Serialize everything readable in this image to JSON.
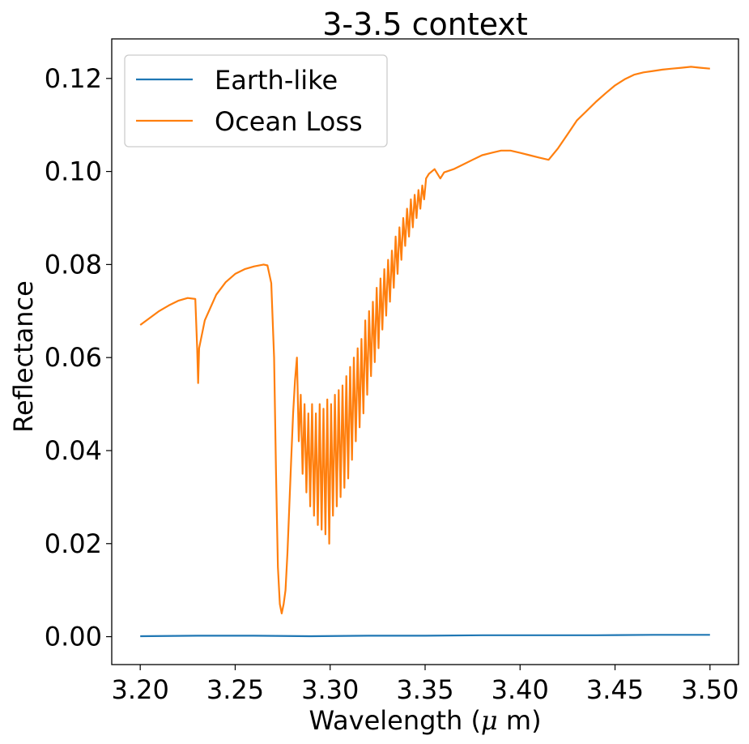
{
  "chart_data": {
    "type": "line",
    "title": "3-3.5 context",
    "xlabel": "Wavelength ($\\mu$ m)",
    "ylabel": "Reflectance",
    "xlim": [
      3.185,
      3.515
    ],
    "ylim": [
      -0.006,
      0.1285
    ],
    "xticks": [
      3.2,
      3.25,
      3.3,
      3.35,
      3.4,
      3.45,
      3.5
    ],
    "xtick_labels": [
      "3.20",
      "3.25",
      "3.30",
      "3.35",
      "3.40",
      "3.45",
      "3.50"
    ],
    "yticks": [
      0.0,
      0.02,
      0.04,
      0.06,
      0.08,
      0.1,
      0.12
    ],
    "ytick_labels": [
      "0.00",
      "0.02",
      "0.04",
      "0.06",
      "0.08",
      "0.10",
      "0.12"
    ],
    "grid": false,
    "legend": {
      "position": "top-left"
    },
    "series": [
      {
        "name": "Earth-like",
        "color": "#1f77b4",
        "x": [
          3.2,
          3.23,
          3.26,
          3.29,
          3.32,
          3.35,
          3.38,
          3.41,
          3.44,
          3.47,
          3.5
        ],
        "y": [
          0.0001,
          0.0002,
          0.0002,
          0.0001,
          0.0002,
          0.0002,
          0.0003,
          0.0003,
          0.0003,
          0.0004,
          0.0004
        ]
      },
      {
        "name": "Ocean Loss",
        "color": "#ff7f0e",
        "x": [
          3.2,
          3.205,
          3.21,
          3.215,
          3.22,
          3.225,
          3.229,
          3.23,
          3.2305,
          3.231,
          3.234,
          3.24,
          3.245,
          3.25,
          3.255,
          3.26,
          3.265,
          3.267,
          3.269,
          3.2705,
          3.2715,
          3.2725,
          3.2735,
          3.2745,
          3.2755,
          3.2765,
          3.2775,
          3.2785,
          3.2795,
          3.2805,
          3.2815,
          3.2825,
          3.2835,
          3.2845,
          3.2855,
          3.2865,
          3.2875,
          3.2885,
          3.2895,
          3.2905,
          3.2915,
          3.2925,
          3.2935,
          3.2945,
          3.2955,
          3.2965,
          3.2975,
          3.2985,
          3.2995,
          3.3005,
          3.3015,
          3.3025,
          3.3035,
          3.3045,
          3.3055,
          3.3065,
          3.3075,
          3.3085,
          3.3095,
          3.3105,
          3.3115,
          3.3125,
          3.3135,
          3.3145,
          3.3155,
          3.3165,
          3.3175,
          3.3185,
          3.3195,
          3.3205,
          3.3215,
          3.3225,
          3.3235,
          3.3245,
          3.3255,
          3.3265,
          3.3275,
          3.3285,
          3.3295,
          3.3305,
          3.3315,
          3.3325,
          3.3335,
          3.3345,
          3.3355,
          3.3365,
          3.3375,
          3.3385,
          3.3395,
          3.3405,
          3.3415,
          3.3425,
          3.3435,
          3.3445,
          3.3455,
          3.3465,
          3.3475,
          3.3485,
          3.3495,
          3.3505,
          3.352,
          3.355,
          3.358,
          3.36,
          3.365,
          3.37,
          3.375,
          3.38,
          3.385,
          3.39,
          3.395,
          3.4,
          3.405,
          3.41,
          3.415,
          3.42,
          3.425,
          3.43,
          3.435,
          3.44,
          3.445,
          3.45,
          3.455,
          3.46,
          3.465,
          3.47,
          3.475,
          3.48,
          3.485,
          3.49,
          3.495,
          3.5
        ],
        "y": [
          0.067,
          0.0685,
          0.07,
          0.0712,
          0.0722,
          0.0728,
          0.0726,
          0.062,
          0.0545,
          0.062,
          0.068,
          0.0735,
          0.0762,
          0.078,
          0.079,
          0.0796,
          0.08,
          0.0798,
          0.076,
          0.06,
          0.035,
          0.015,
          0.007,
          0.005,
          0.007,
          0.01,
          0.018,
          0.028,
          0.038,
          0.048,
          0.055,
          0.06,
          0.042,
          0.052,
          0.035,
          0.05,
          0.031,
          0.048,
          0.028,
          0.05,
          0.026,
          0.048,
          0.024,
          0.05,
          0.023,
          0.049,
          0.022,
          0.051,
          0.02,
          0.05,
          0.026,
          0.052,
          0.028,
          0.053,
          0.03,
          0.054,
          0.032,
          0.056,
          0.034,
          0.058,
          0.038,
          0.06,
          0.042,
          0.062,
          0.045,
          0.064,
          0.048,
          0.068,
          0.052,
          0.07,
          0.056,
          0.072,
          0.059,
          0.075,
          0.062,
          0.077,
          0.066,
          0.079,
          0.069,
          0.081,
          0.072,
          0.083,
          0.075,
          0.086,
          0.078,
          0.088,
          0.081,
          0.09,
          0.084,
          0.092,
          0.086,
          0.094,
          0.088,
          0.095,
          0.09,
          0.096,
          0.092,
          0.097,
          0.094,
          0.0985,
          0.0995,
          0.1005,
          0.0985,
          0.0998,
          0.1005,
          0.1015,
          0.1025,
          0.1035,
          0.104,
          0.1045,
          0.1045,
          0.104,
          0.1035,
          0.103,
          0.1025,
          0.105,
          0.108,
          0.111,
          0.113,
          0.115,
          0.1168,
          0.1185,
          0.1198,
          0.1208,
          0.1213,
          0.1216,
          0.1219,
          0.1221,
          0.1223,
          0.1225,
          0.1223,
          0.1221
        ]
      }
    ]
  }
}
